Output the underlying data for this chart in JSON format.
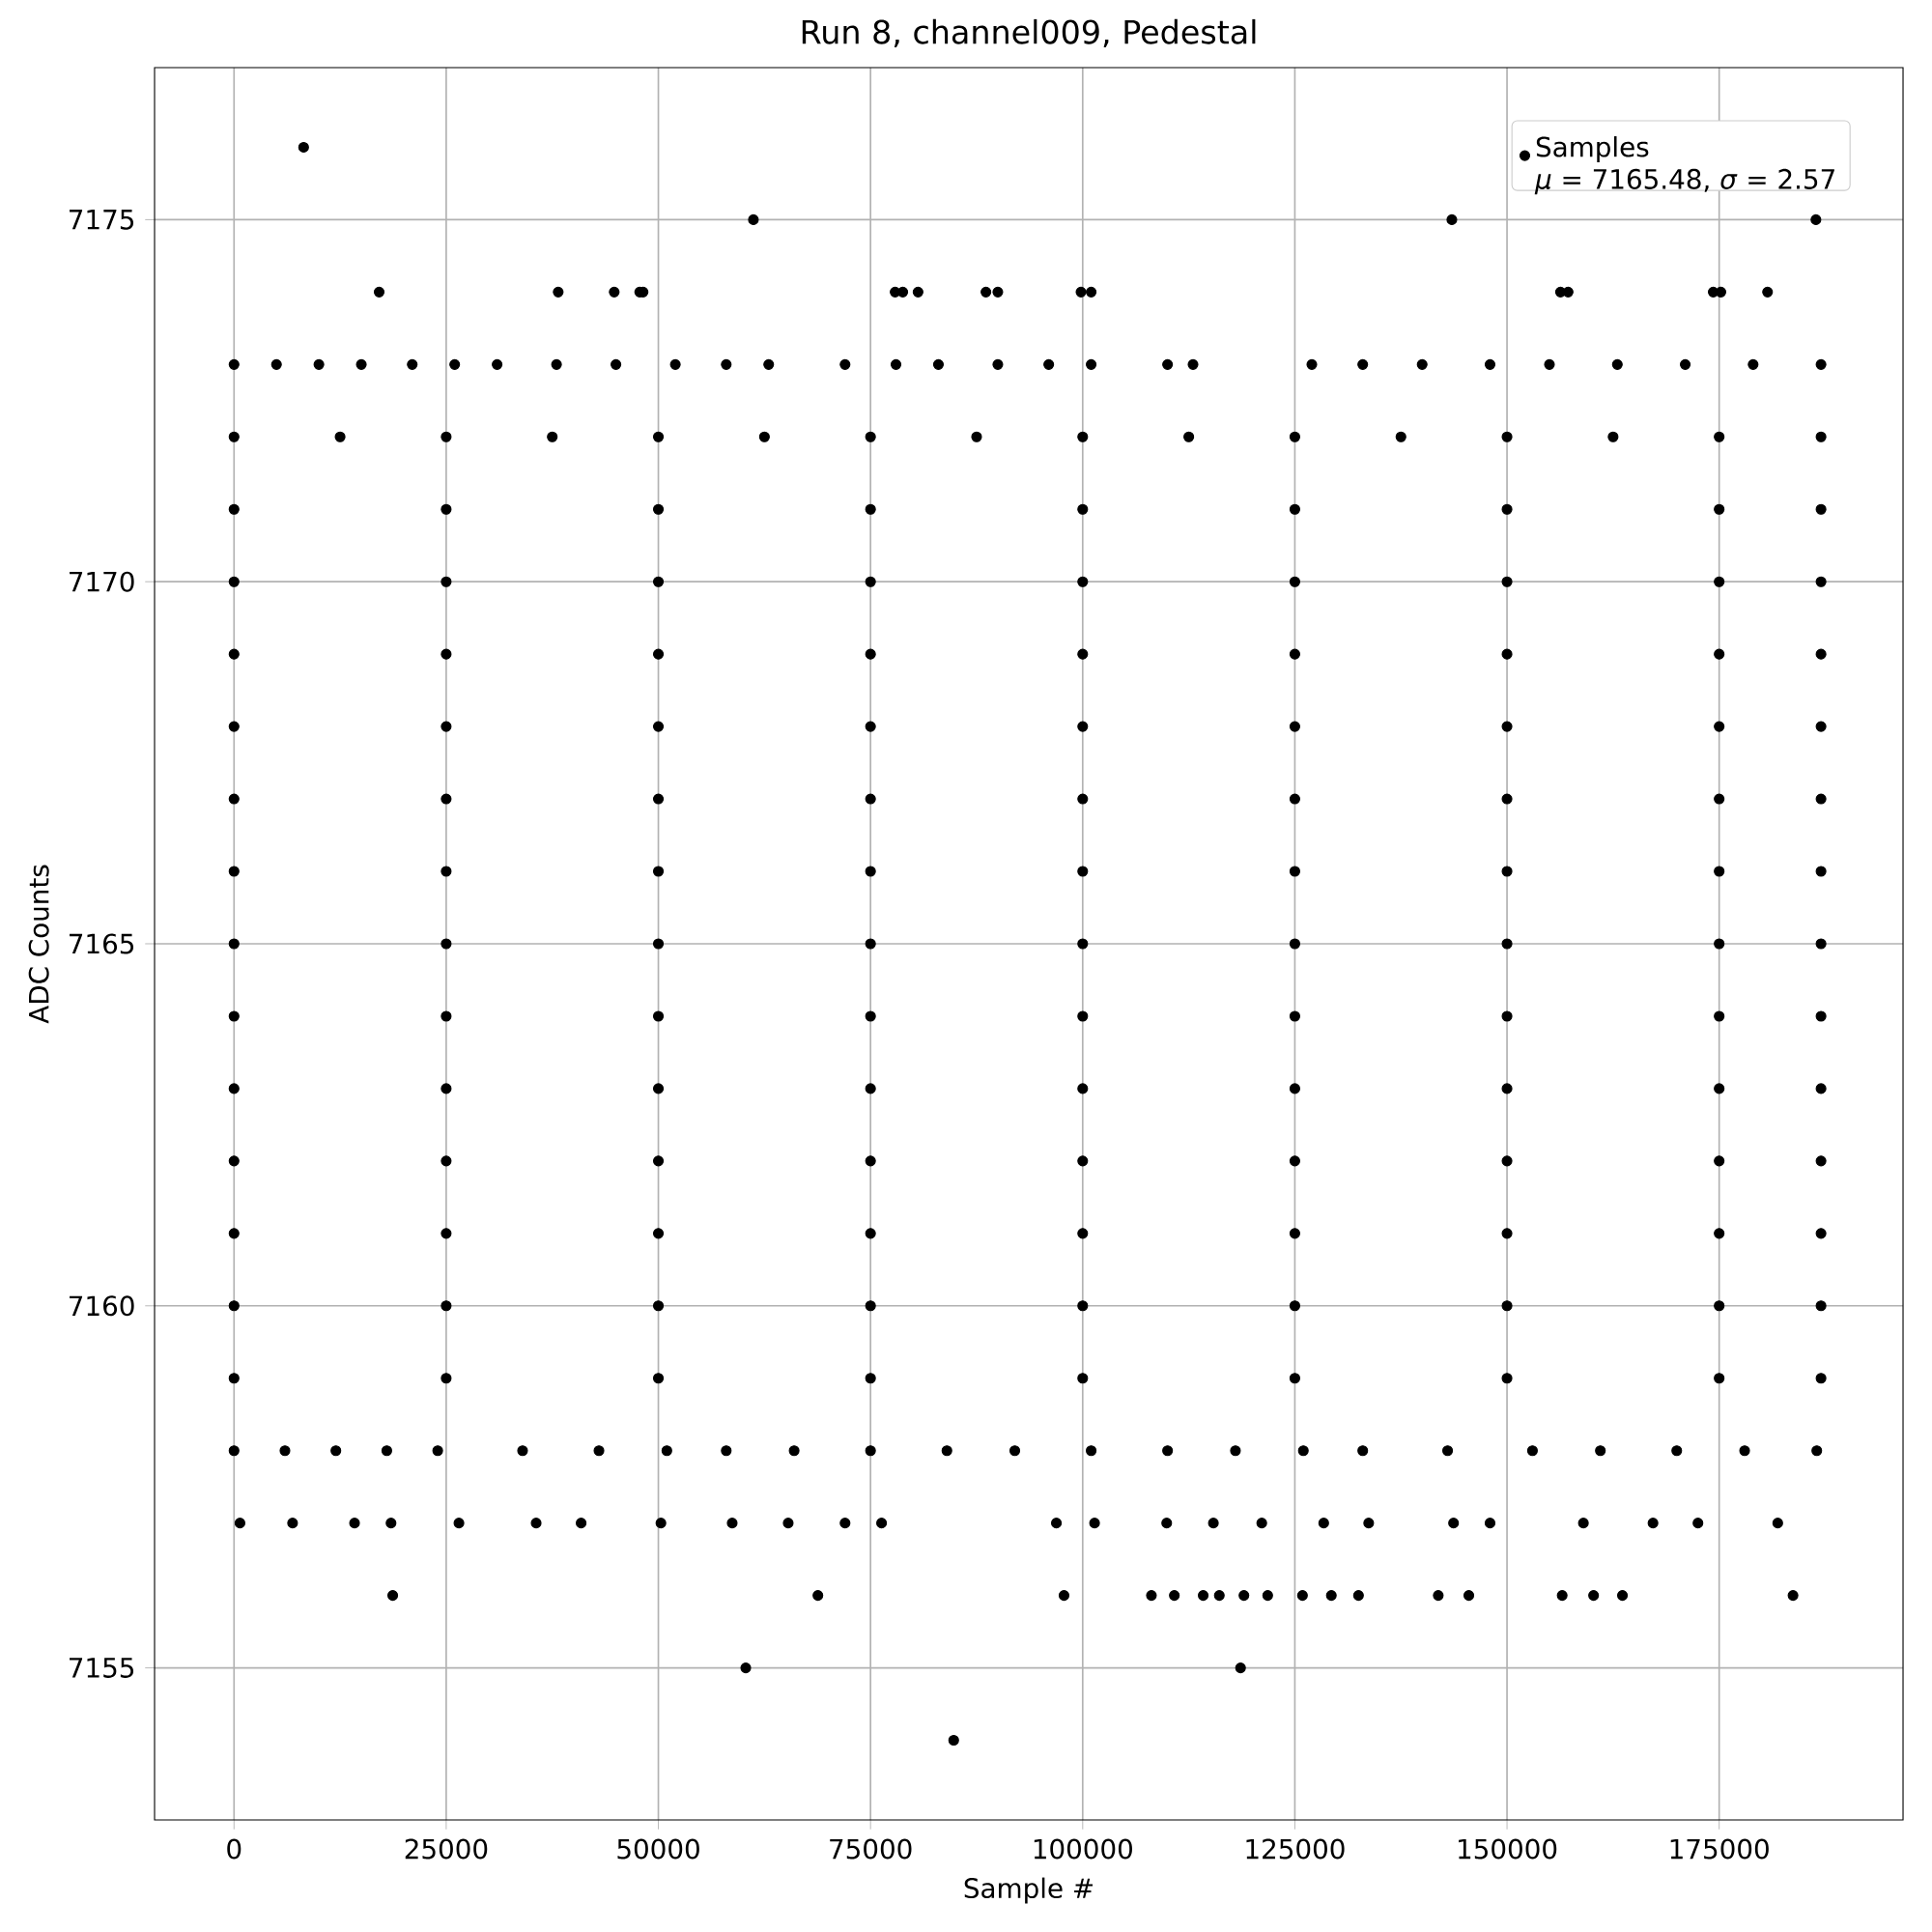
{
  "chart_data": {
    "type": "scatter",
    "title": "Run 8, channel009, Pedestal",
    "xlabel": "Sample #",
    "ylabel": "ADC Counts",
    "xlim": [
      -9365,
      196665
    ],
    "ylim": [
      7152.9,
      7177.1
    ],
    "xticks": [
      0,
      25000,
      50000,
      75000,
      100000,
      125000,
      150000,
      175000
    ],
    "yticks": [
      7155,
      7160,
      7165,
      7170,
      7175
    ],
    "grid": true,
    "legend": "top right",
    "marker": "circle",
    "annotations": [
      "*μ* = 7165.48, *σ* = 2.57"
    ],
    "series": [
      {
        "name": "Samples",
        "color": "#000000",
        "x": [
          8200,
          61200,
          143500,
          186400,
          17100,
          38200,
          44800,
          47800,
          48200,
          77900,
          78800,
          80600,
          88600,
          90000,
          99800,
          101000,
          156300,
          157200,
          174300,
          175200,
          180700,
          0,
          5000,
          10000,
          15000,
          21000,
          26000,
          31000,
          38000,
          45000,
          52000,
          58000,
          63000,
          72000,
          78000,
          83000,
          90000,
          96000,
          101000,
          110000,
          113000,
          127000,
          133000,
          140000,
          148000,
          155000,
          163000,
          171000,
          179000,
          187000,
          0,
          12500,
          25000,
          37500,
          50000,
          62500,
          75000,
          87500,
          100000,
          112500,
          125000,
          137500,
          150000,
          162500,
          175000,
          187000,
          0,
          25000,
          50000,
          75000,
          100000,
          125000,
          150000,
          175000,
          187000,
          0,
          25000,
          50000,
          75000,
          100000,
          125000,
          150000,
          175000,
          187000,
          0,
          25000,
          50000,
          75000,
          100000,
          125000,
          150000,
          175000,
          187000,
          0,
          25000,
          50000,
          75000,
          100000,
          125000,
          150000,
          175000,
          187000,
          0,
          25000,
          50000,
          75000,
          100000,
          125000,
          150000,
          175000,
          187000,
          0,
          25000,
          50000,
          75000,
          100000,
          125000,
          150000,
          175000,
          187000,
          0,
          25000,
          50000,
          75000,
          100000,
          125000,
          150000,
          175000,
          187000,
          0,
          25000,
          50000,
          75000,
          100000,
          125000,
          150000,
          175000,
          187000,
          0,
          25000,
          50000,
          75000,
          100000,
          125000,
          150000,
          175000,
          187000,
          0,
          25000,
          50000,
          75000,
          100000,
          125000,
          150000,
          175000,
          187000,
          0,
          25000,
          50000,
          75000,
          100000,
          125000,
          150000,
          175000,
          187000,
          0,
          25000,
          50000,
          75000,
          100000,
          125000,
          150000,
          175000,
          187000,
          0,
          25000,
          50000,
          75000,
          100000,
          125000,
          150000,
          175000,
          187000,
          0,
          6000,
          12000,
          18000,
          24000,
          34000,
          43000,
          51000,
          58000,
          66000,
          75000,
          84000,
          92000,
          101000,
          110000,
          118000,
          126000,
          133000,
          143000,
          153000,
          161000,
          170000,
          178000,
          186500,
          700,
          6900,
          14200,
          18500,
          26500,
          35600,
          40900,
          50300,
          58700,
          65300,
          72000,
          76300,
          96900,
          101400,
          109900,
          115400,
          121100,
          128400,
          133700,
          143700,
          148000,
          159000,
          167200,
          172500,
          181900,
          18700,
          68800,
          97800,
          108100,
          110800,
          114200,
          116100,
          119000,
          121800,
          125900,
          129300,
          132500,
          141900,
          145500,
          156500,
          160200,
          163600,
          183700,
          60300,
          118600,
          84800
        ],
        "values": [
          7176,
          7175,
          7175,
          7175,
          7174,
          7174,
          7174,
          7174,
          7174,
          7174,
          7174,
          7174,
          7174,
          7174,
          7174,
          7174,
          7174,
          7174,
          7174,
          7174,
          7174,
          7173,
          7173,
          7173,
          7173,
          7173,
          7173,
          7173,
          7173,
          7173,
          7173,
          7173,
          7173,
          7173,
          7173,
          7173,
          7173,
          7173,
          7173,
          7173,
          7173,
          7173,
          7173,
          7173,
          7173,
          7173,
          7173,
          7173,
          7173,
          7173,
          7172,
          7172,
          7172,
          7172,
          7172,
          7172,
          7172,
          7172,
          7172,
          7172,
          7172,
          7172,
          7172,
          7172,
          7172,
          7172,
          7171,
          7171,
          7171,
          7171,
          7171,
          7171,
          7171,
          7171,
          7171,
          7170,
          7170,
          7170,
          7170,
          7170,
          7170,
          7170,
          7170,
          7170,
          7169,
          7169,
          7169,
          7169,
          7169,
          7169,
          7169,
          7169,
          7169,
          7168,
          7168,
          7168,
          7168,
          7168,
          7168,
          7168,
          7168,
          7168,
          7167,
          7167,
          7167,
          7167,
          7167,
          7167,
          7167,
          7167,
          7167,
          7166,
          7166,
          7166,
          7166,
          7166,
          7166,
          7166,
          7166,
          7166,
          7165,
          7165,
          7165,
          7165,
          7165,
          7165,
          7165,
          7165,
          7165,
          7164,
          7164,
          7164,
          7164,
          7164,
          7164,
          7164,
          7164,
          7164,
          7163,
          7163,
          7163,
          7163,
          7163,
          7163,
          7163,
          7163,
          7163,
          7162,
          7162,
          7162,
          7162,
          7162,
          7162,
          7162,
          7162,
          7162,
          7161,
          7161,
          7161,
          7161,
          7161,
          7161,
          7161,
          7161,
          7161,
          7160,
          7160,
          7160,
          7160,
          7160,
          7160,
          7160,
          7160,
          7160,
          7159,
          7159,
          7159,
          7159,
          7159,
          7159,
          7159,
          7159,
          7159,
          7158,
          7158,
          7158,
          7158,
          7158,
          7158,
          7158,
          7158,
          7158,
          7158,
          7158,
          7158,
          7158,
          7158,
          7158,
          7158,
          7158,
          7158,
          7158,
          7158,
          7158,
          7158,
          7158,
          7158,
          7157,
          7157,
          7157,
          7157,
          7157,
          7157,
          7157,
          7157,
          7157,
          7157,
          7157,
          7157,
          7157,
          7157,
          7157,
          7157,
          7157,
          7157,
          7157,
          7157,
          7157,
          7157,
          7157,
          7157,
          7157,
          7156,
          7156,
          7156,
          7156,
          7156,
          7156,
          7156,
          7156,
          7156,
          7156,
          7156,
          7156,
          7156,
          7156,
          7156,
          7156,
          7156,
          7156,
          7155,
          7155,
          7154
        ]
      }
    ]
  }
}
